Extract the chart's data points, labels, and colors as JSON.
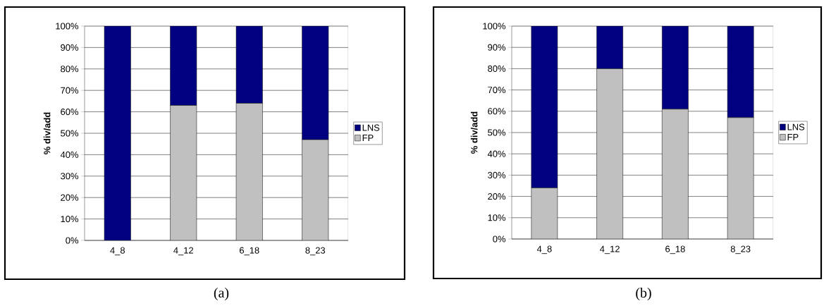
{
  "chart_data": [
    {
      "type": "bar",
      "stacked": true,
      "categories": [
        "4_8",
        "4_12",
        "6_18",
        "8_23"
      ],
      "ylabel": "% div/add",
      "ylim": [
        0,
        100
      ],
      "yticks": [
        {
          "value": 0,
          "label": "0%"
        },
        {
          "value": 10,
          "label": "10%"
        },
        {
          "value": 20,
          "label": "20%"
        },
        {
          "value": 30,
          "label": "30%"
        },
        {
          "value": 40,
          "label": "40%"
        },
        {
          "value": 50,
          "label": "50%"
        },
        {
          "value": 60,
          "label": "60%"
        },
        {
          "value": 70,
          "label": "70%"
        },
        {
          "value": 80,
          "label": "80%"
        },
        {
          "value": 90,
          "label": "90%"
        },
        {
          "value": 100,
          "label": "100%"
        }
      ],
      "series": [
        {
          "name": "FP",
          "color": "#c0c0c0",
          "values": [
            0,
            63,
            64,
            47
          ]
        },
        {
          "name": "LNS",
          "color": "#000080",
          "values": [
            100,
            37,
            36,
            53
          ]
        }
      ],
      "grid": "y",
      "legend": "right",
      "annotations": [
        "(a)"
      ]
    },
    {
      "type": "bar",
      "stacked": true,
      "categories": [
        "4_8",
        "4_12",
        "6_18",
        "8_23"
      ],
      "ylabel": "% div/add",
      "ylim": [
        0,
        100
      ],
      "yticks": [
        {
          "value": 0,
          "label": "0%"
        },
        {
          "value": 10,
          "label": "10%"
        },
        {
          "value": 20,
          "label": "20%"
        },
        {
          "value": 30,
          "label": "30%"
        },
        {
          "value": 40,
          "label": "40%"
        },
        {
          "value": 50,
          "label": "50%"
        },
        {
          "value": 60,
          "label": "60%"
        },
        {
          "value": 70,
          "label": "70%"
        },
        {
          "value": 80,
          "label": "80%"
        },
        {
          "value": 90,
          "label": "90%"
        },
        {
          "value": 100,
          "label": "100%"
        }
      ],
      "series": [
        {
          "name": "FP",
          "color": "#c0c0c0",
          "values": [
            24,
            80,
            61,
            57
          ]
        },
        {
          "name": "LNS",
          "color": "#000080",
          "values": [
            76,
            20,
            39,
            43
          ]
        }
      ],
      "grid": "y",
      "legend": "right",
      "annotations": [
        "(b)"
      ]
    }
  ]
}
